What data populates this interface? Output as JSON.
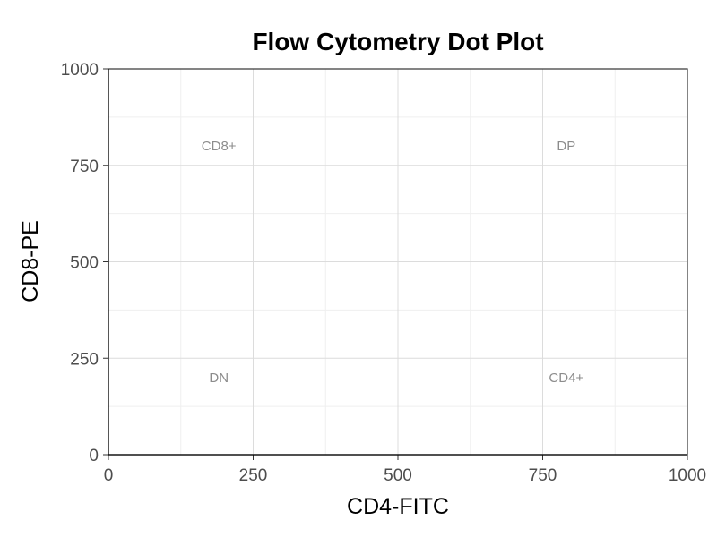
{
  "chart_data": {
    "type": "scatter",
    "title": "Flow Cytometry Dot Plot",
    "xlabel": "CD4-FITC",
    "ylabel": "CD8-PE",
    "xlim": [
      0,
      1000
    ],
    "ylim": [
      0,
      1000
    ],
    "x_ticks": [
      0,
      250,
      500,
      750,
      1000
    ],
    "y_ticks": [
      0,
      250,
      500,
      750,
      1000
    ],
    "x_minor_ticks": [
      125,
      375,
      625,
      875
    ],
    "y_minor_ticks": [
      125,
      375,
      625,
      875
    ],
    "grid": true,
    "points": [],
    "annotations": [
      {
        "text": "CD8+",
        "x": 200,
        "y": 800
      },
      {
        "text": "DP",
        "x": 800,
        "y": 800
      },
      {
        "text": "DN",
        "x": 200,
        "y": 200
      },
      {
        "text": "CD4+",
        "x": 800,
        "y": 200
      }
    ]
  }
}
